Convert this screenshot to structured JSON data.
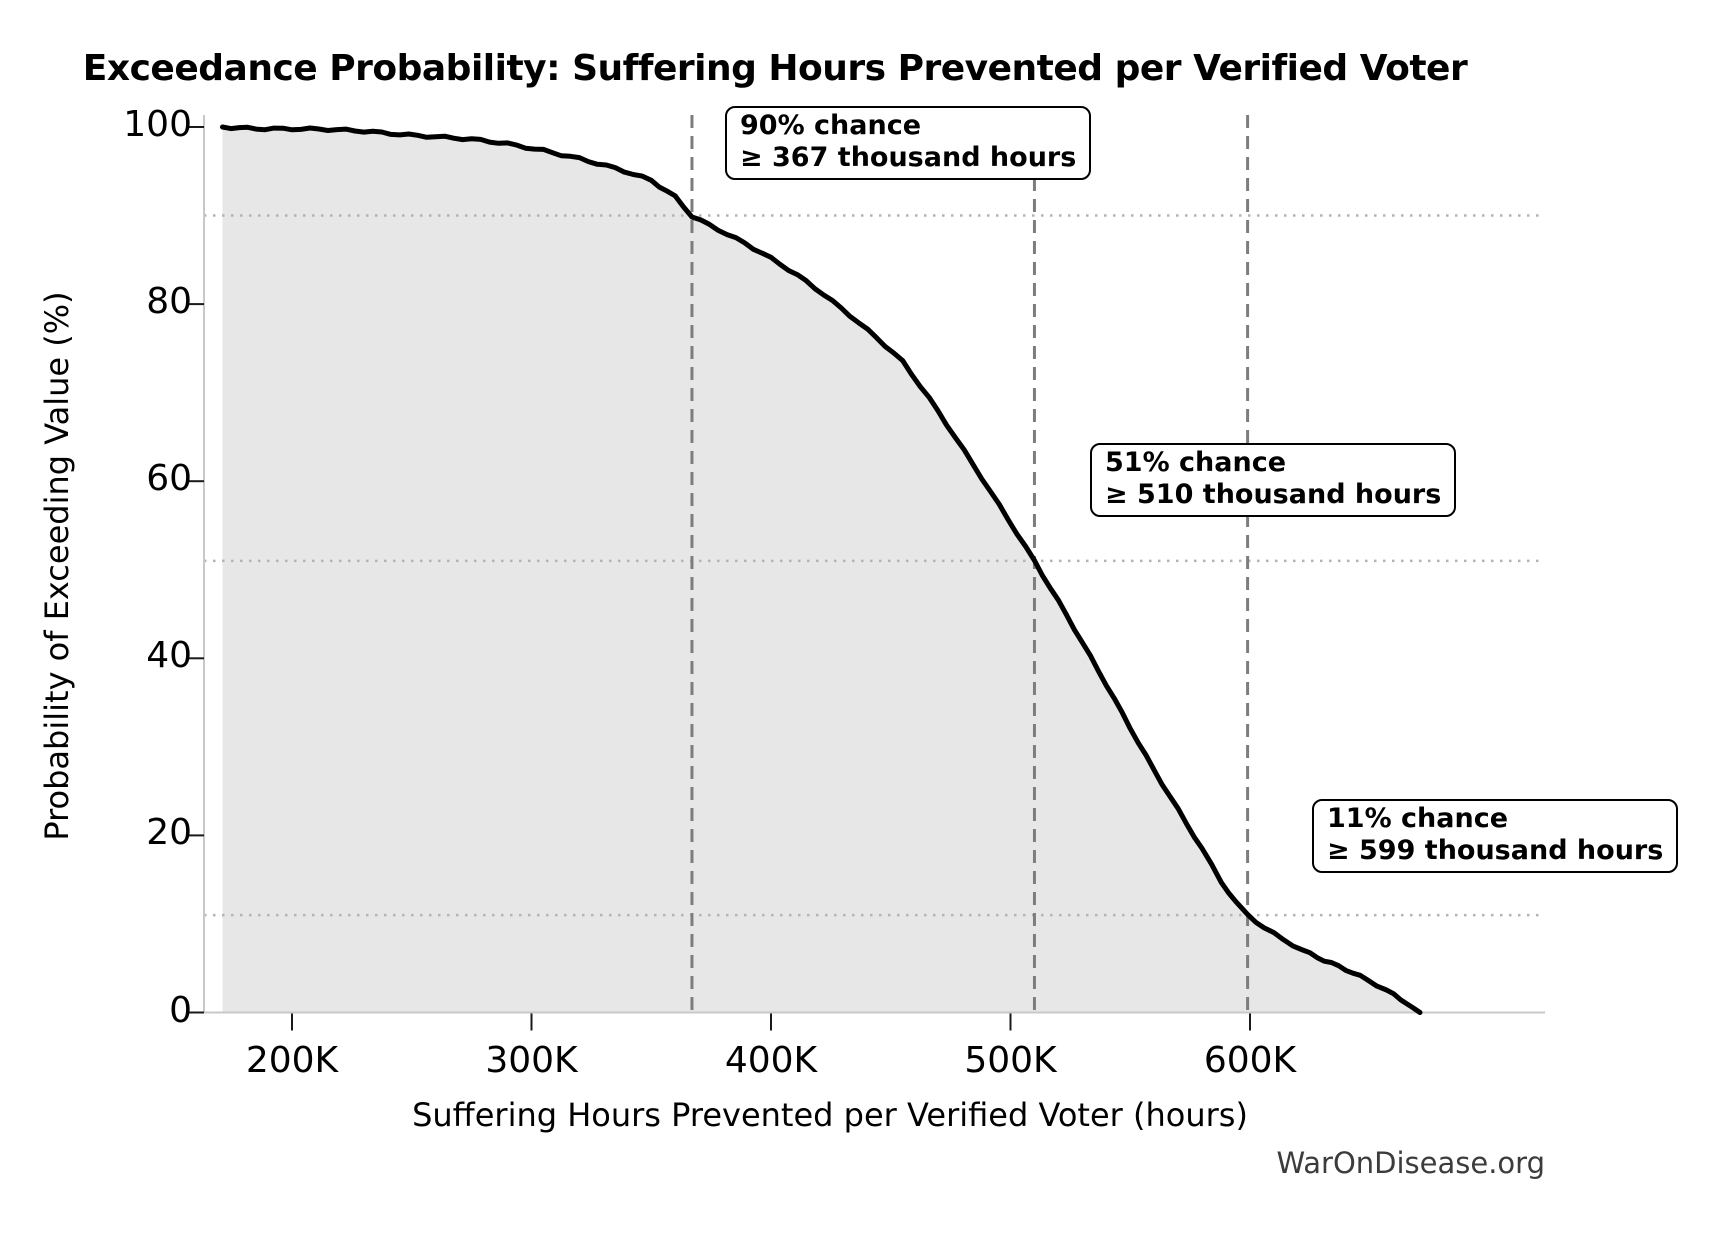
{
  "watermark": "WarOnDisease.org",
  "chart_data": {
    "type": "line",
    "title": "Exceedance Probability: Suffering Hours Prevented per Verified Voter",
    "xlabel": "Suffering Hours Prevented per Verified Voter (hours)",
    "ylabel": "Probability of Exceeding Value (%)",
    "x_unit": "thousand hours",
    "xlim_thousand": [
      163,
      723
    ],
    "ylim": [
      0,
      100
    ],
    "grid": "guide lines only",
    "legend": "none",
    "x_ticks": [
      {
        "value": 200,
        "label": "200K"
      },
      {
        "value": 300,
        "label": "300K"
      },
      {
        "value": 400,
        "label": "400K"
      },
      {
        "value": 500,
        "label": "500K"
      },
      {
        "value": 600,
        "label": "600K"
      }
    ],
    "y_ticks": [
      {
        "value": 0,
        "label": "0"
      },
      {
        "value": 20,
        "label": "20"
      },
      {
        "value": 40,
        "label": "40"
      },
      {
        "value": 60,
        "label": "60"
      },
      {
        "value": 80,
        "label": "80"
      },
      {
        "value": 100,
        "label": "100"
      }
    ],
    "series": [
      {
        "name": "exceedance-curve",
        "x_thousand_hours": [
          171,
          185,
          200,
          215,
          230,
          245,
          260,
          275,
          290,
          305,
          320,
          335,
          350,
          360,
          367,
          378,
          389,
          400,
          411,
          422,
          433,
          444,
          455,
          466,
          477,
          488,
          499,
          510,
          520,
          530,
          540,
          550,
          560,
          570,
          580,
          588,
          594,
          599,
          606,
          614,
          622,
          631,
          640,
          649,
          657,
          663,
          668,
          671
        ],
        "y_percent": [
          100,
          99.9,
          99.8,
          99.65,
          99.5,
          99.25,
          98.95,
          98.55,
          98.05,
          97.4,
          96.5,
          95.3,
          93.9,
          92.1,
          90,
          88.5,
          86.9,
          85.1,
          83.2,
          81.1,
          78.8,
          76.3,
          73.5,
          69.3,
          64.9,
          60.4,
          55.8,
          51,
          46.4,
          41.7,
          37,
          32.2,
          27.4,
          22.9,
          18.4,
          14.7,
          12.4,
          11,
          9.6,
          8.3,
          7.1,
          5.9,
          4.8,
          3.6,
          2.5,
          1.5,
          0.7,
          0
        ]
      }
    ],
    "fill_under_curve": true,
    "guide_lines": {
      "vertical_dashed_at_thousand": [
        367,
        510,
        599
      ],
      "horizontal_dotted_at_percent": [
        90,
        51,
        11
      ]
    },
    "annotations": [
      {
        "percent": 90,
        "value_thousand": 367,
        "line1": "90% chance",
        "line2": "≥ 367 thousand hours"
      },
      {
        "percent": 51,
        "value_thousand": 510,
        "line1": "51% chance",
        "line2": "≥ 510 thousand hours"
      },
      {
        "percent": 11,
        "value_thousand": 599,
        "line1": "11% chance",
        "line2": "≥ 599 thousand hours"
      }
    ],
    "colors": {
      "curve": "#000000",
      "fill": "#e7e7e7",
      "dashed_guide": "#7d7d7d",
      "dotted_guide": "#b3b3b3",
      "spine": "#c8c8c8",
      "tick": "#1a1a1a",
      "text": "#000000",
      "annotation_bg": "#ffffff",
      "annotation_border": "#000000",
      "watermark": "#3c3c3c"
    }
  }
}
